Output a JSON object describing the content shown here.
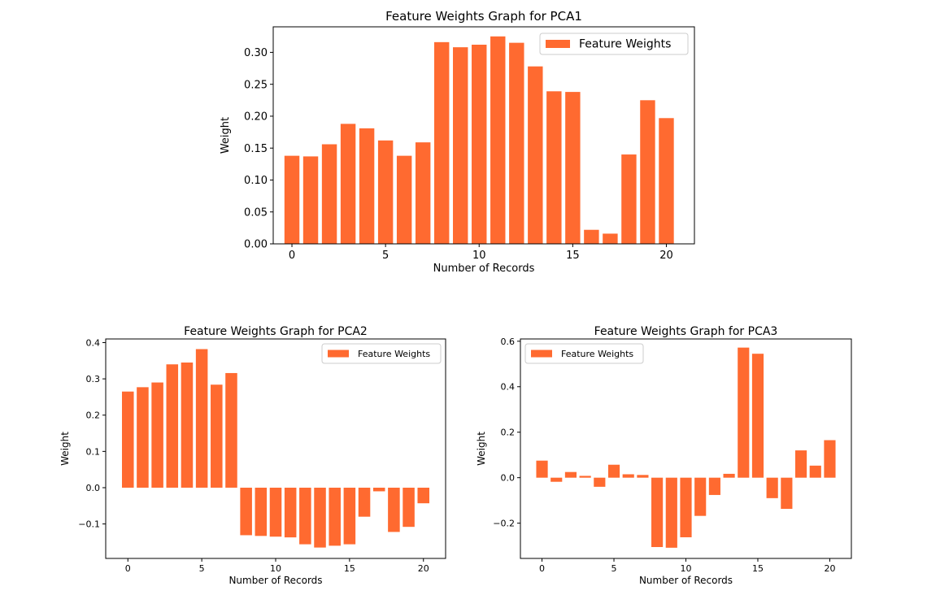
{
  "colors": {
    "bar": "#ff6a30",
    "axis": "#000000",
    "legend_border": "#cccccc"
  },
  "chart_data": [
    {
      "type": "bar",
      "title": "Feature Weights Graph for PCA1",
      "xlabel": "Number of Records",
      "ylabel": "Weight",
      "legend": [
        "Feature Weights"
      ],
      "legend_position": "top-right",
      "grid": false,
      "xlim": [
        -1,
        21.5
      ],
      "ylim": [
        0,
        0.34
      ],
      "xticks": [
        0,
        5,
        10,
        15,
        20
      ],
      "yticks": [
        0.0,
        0.05,
        0.1,
        0.15,
        0.2,
        0.25,
        0.3
      ],
      "ytick_labels": [
        "0.00",
        "0.05",
        "0.10",
        "0.15",
        "0.20",
        "0.25",
        "0.30"
      ],
      "x": [
        0,
        1,
        2,
        3,
        4,
        5,
        6,
        7,
        8,
        9,
        10,
        11,
        12,
        13,
        14,
        15,
        16,
        17,
        18,
        19,
        20
      ],
      "values": [
        0.138,
        0.137,
        0.156,
        0.188,
        0.181,
        0.162,
        0.138,
        0.159,
        0.316,
        0.308,
        0.312,
        0.325,
        0.315,
        0.278,
        0.239,
        0.238,
        0.022,
        0.016,
        0.14,
        0.225,
        0.197
      ]
    },
    {
      "type": "bar",
      "title": "Feature Weights Graph for PCA2",
      "xlabel": "Number of Records",
      "ylabel": "Weight",
      "legend": [
        "Feature Weights"
      ],
      "legend_position": "top-right",
      "grid": false,
      "xlim": [
        -1.5,
        21.5
      ],
      "ylim": [
        -0.195,
        0.41
      ],
      "xticks": [
        0,
        5,
        10,
        15,
        20
      ],
      "yticks": [
        -0.1,
        0.0,
        0.1,
        0.2,
        0.3,
        0.4
      ],
      "ytick_labels": [
        "−0.1",
        "0.0",
        "0.1",
        "0.2",
        "0.3",
        "0.4"
      ],
      "x": [
        0,
        1,
        2,
        3,
        4,
        5,
        6,
        7,
        8,
        9,
        10,
        11,
        12,
        13,
        14,
        15,
        16,
        17,
        18,
        19,
        20
      ],
      "values": [
        0.265,
        0.277,
        0.29,
        0.34,
        0.345,
        0.382,
        0.284,
        0.316,
        -0.131,
        -0.133,
        -0.135,
        -0.137,
        -0.156,
        -0.165,
        -0.16,
        -0.156,
        -0.08,
        -0.01,
        -0.122,
        -0.108,
        -0.043
      ]
    },
    {
      "type": "bar",
      "title": "Feature Weights Graph for PCA3",
      "xlabel": "Number of Records",
      "ylabel": "Weight",
      "legend": [
        "Feature Weights"
      ],
      "legend_position": "top-left",
      "grid": false,
      "xlim": [
        -1.5,
        21.5
      ],
      "ylim": [
        -0.355,
        0.61
      ],
      "xticks": [
        0,
        5,
        10,
        15,
        20
      ],
      "yticks": [
        -0.2,
        0.0,
        0.2,
        0.4,
        0.6
      ],
      "ytick_labels": [
        "−0.2",
        "0.0",
        "0.2",
        "0.4",
        "0.6"
      ],
      "x": [
        0,
        1,
        2,
        3,
        4,
        5,
        6,
        7,
        8,
        9,
        10,
        11,
        12,
        13,
        14,
        15,
        16,
        17,
        18,
        19,
        20
      ],
      "values": [
        0.075,
        -0.018,
        0.025,
        0.008,
        -0.04,
        0.057,
        0.015,
        0.012,
        -0.305,
        -0.308,
        -0.262,
        -0.168,
        -0.076,
        0.017,
        0.572,
        0.545,
        -0.09,
        -0.137,
        0.12,
        0.053,
        0.165
      ]
    }
  ]
}
